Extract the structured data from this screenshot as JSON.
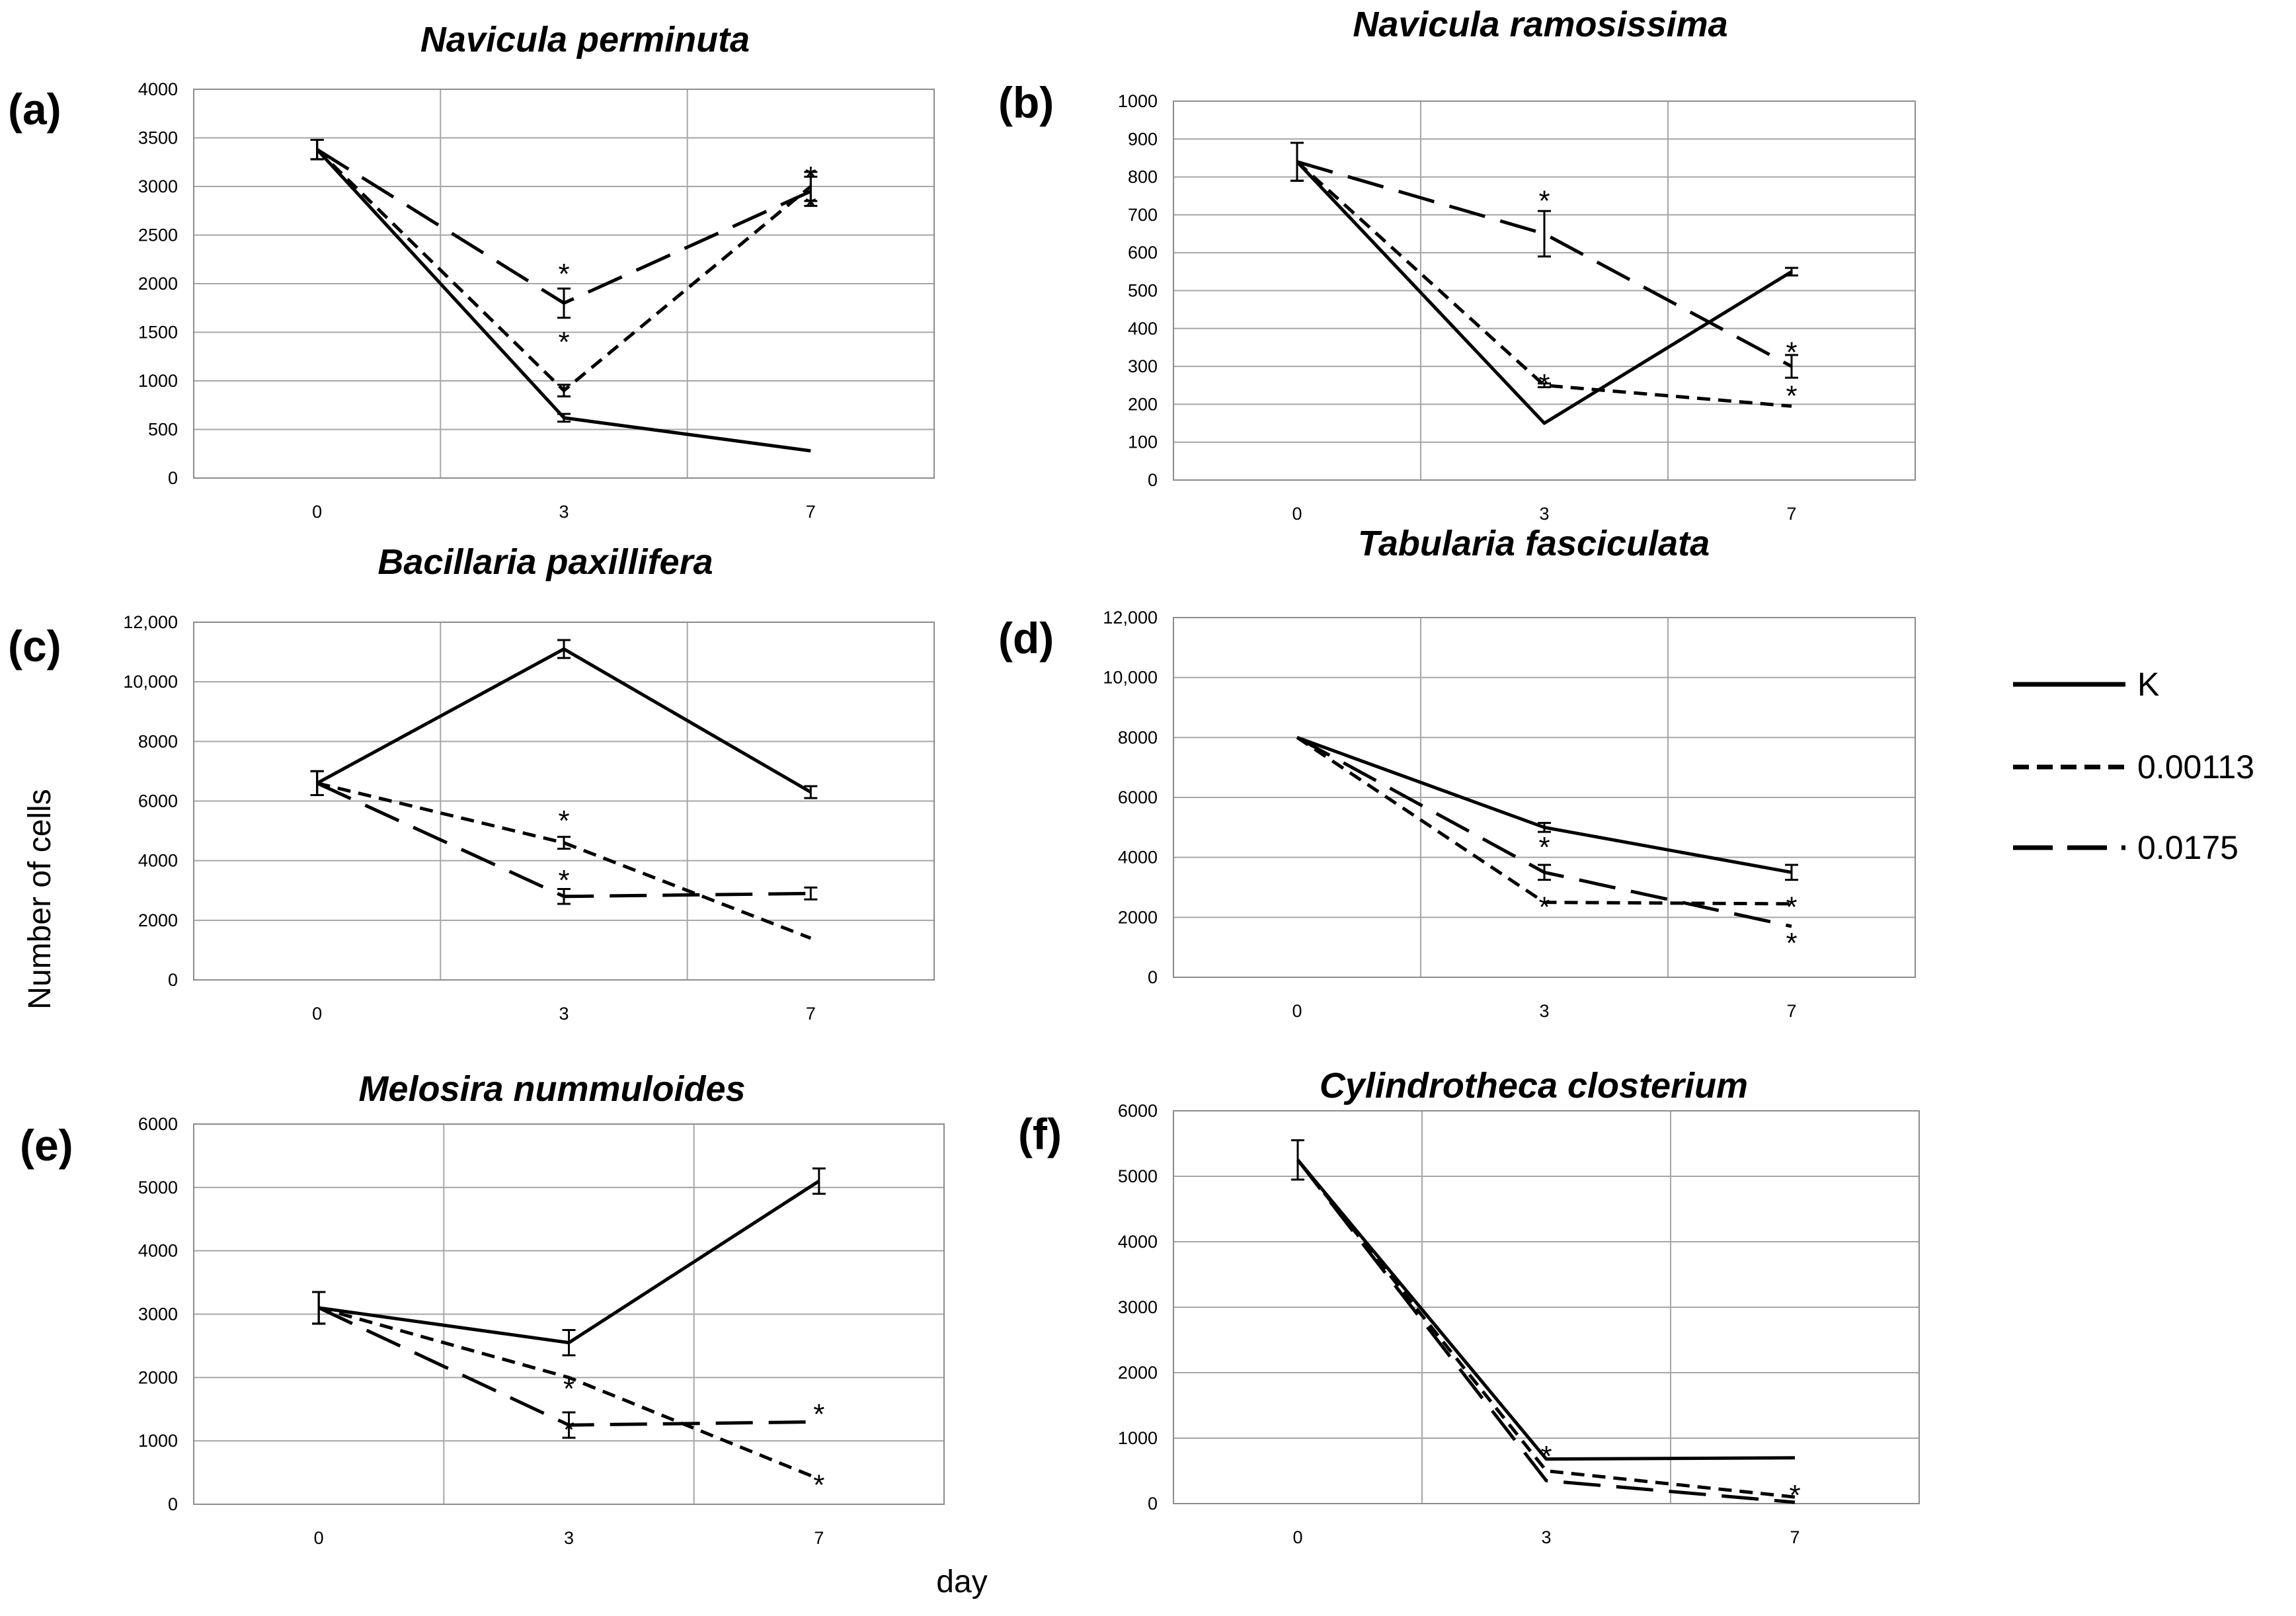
{
  "x_label": "day",
  "y_label": "Number of cells",
  "legend": {
    "entries": [
      {
        "name": "K",
        "dash": "solid"
      },
      {
        "name": "0.00113",
        "dash": "short"
      },
      {
        "name": "0.0175",
        "dash": "long"
      }
    ]
  },
  "chart_data": [
    {
      "type": "line",
      "panel": "(a)",
      "title": "Navicula perminuta",
      "categories": [
        "0",
        "3",
        "7"
      ],
      "y_ticks": [
        "0",
        "500",
        "1000",
        "1500",
        "2000",
        "2500",
        "3000",
        "3500",
        "4000"
      ],
      "ylim": [
        0,
        4000
      ],
      "grid": true,
      "series": [
        {
          "name": "K",
          "values": [
            3380,
            620,
            280
          ],
          "errors": [
            100,
            40,
            0
          ]
        },
        {
          "name": "0.00113",
          "values": [
            3380,
            900,
            3000
          ],
          "errors": [
            100,
            60,
            150
          ]
        },
        {
          "name": "0.0175",
          "values": [
            3380,
            1800,
            2950
          ],
          "errors": [
            100,
            150,
            150
          ]
        }
      ],
      "annotations": [
        {
          "text": "*",
          "x": "3",
          "y": 2150
        },
        {
          "text": "*",
          "x": "3",
          "y": 1450
        },
        {
          "text": "*",
          "x": "7",
          "y": 3150
        },
        {
          "text": "*",
          "x": "7",
          "y": 2850
        }
      ]
    },
    {
      "type": "line",
      "panel": "(b)",
      "title": "Navicula ramosissima",
      "categories": [
        "0",
        "3",
        "7"
      ],
      "y_ticks": [
        "0",
        "100",
        "200",
        "300",
        "400",
        "500",
        "600",
        "700",
        "800",
        "900",
        "1000"
      ],
      "ylim": [
        0,
        1000
      ],
      "grid": true,
      "series": [
        {
          "name": "K",
          "values": [
            840,
            150,
            550
          ],
          "errors": [
            50,
            0,
            10
          ]
        },
        {
          "name": "0.00113",
          "values": [
            840,
            250,
            195
          ],
          "errors": [
            50,
            5,
            0
          ]
        },
        {
          "name": "0.0175",
          "values": [
            840,
            650,
            300
          ],
          "errors": [
            50,
            60,
            30
          ]
        }
      ],
      "annotations": [
        {
          "text": "*",
          "x": "3",
          "y": 750
        },
        {
          "text": "*",
          "x": "3",
          "y": 265
        },
        {
          "text": "*",
          "x": "7",
          "y": 350
        },
        {
          "text": "*",
          "x": "7",
          "y": 235
        }
      ]
    },
    {
      "type": "line",
      "panel": "(c)",
      "title": "Bacillaria paxillifera",
      "categories": [
        "0",
        "3",
        "7"
      ],
      "y_ticks": [
        "0",
        "2000",
        "4000",
        "6000",
        "8000",
        "10,000",
        "12,000"
      ],
      "ylim": [
        0,
        12000
      ],
      "grid": true,
      "series": [
        {
          "name": "K",
          "values": [
            6600,
            11100,
            6300
          ],
          "errors": [
            400,
            300,
            200
          ]
        },
        {
          "name": "0.00113",
          "values": [
            6600,
            4600,
            1400
          ],
          "errors": [
            400,
            200,
            0
          ]
        },
        {
          "name": "0.0175",
          "values": [
            6600,
            2800,
            2900
          ],
          "errors": [
            400,
            250,
            200
          ]
        }
      ],
      "annotations": [
        {
          "text": "*",
          "x": "3",
          "y": 5500
        },
        {
          "text": "*",
          "x": "3",
          "y": 3500
        }
      ]
    },
    {
      "type": "line",
      "panel": "(d)",
      "title": "Tabularia fasciculata",
      "categories": [
        "0",
        "3",
        "7"
      ],
      "y_ticks": [
        "0",
        "2000",
        "4000",
        "6000",
        "8000",
        "10,000",
        "12,000"
      ],
      "ylim": [
        0,
        12000
      ],
      "grid": true,
      "series": [
        {
          "name": "K",
          "values": [
            8000,
            5000,
            3500
          ],
          "errors": [
            0,
            150,
            250
          ]
        },
        {
          "name": "0.00113",
          "values": [
            8000,
            2500,
            2450
          ],
          "errors": [
            0,
            0,
            0
          ]
        },
        {
          "name": "0.0175",
          "values": [
            8000,
            3500,
            1700
          ],
          "errors": [
            0,
            250,
            0
          ]
        }
      ],
      "annotations": [
        {
          "text": "*",
          "x": "3",
          "y": 4500
        },
        {
          "text": "*",
          "x": "3",
          "y": 2500
        },
        {
          "text": "*",
          "x": "7",
          "y": 2500
        },
        {
          "text": "*",
          "x": "7",
          "y": 1300
        }
      ]
    },
    {
      "type": "line",
      "panel": "(e)",
      "title": "Melosira nummuloides",
      "categories": [
        "0",
        "3",
        "7"
      ],
      "y_ticks": [
        "0",
        "1000",
        "2000",
        "3000",
        "4000",
        "5000",
        "6000"
      ],
      "ylim": [
        0,
        6000
      ],
      "grid": true,
      "series": [
        {
          "name": "K",
          "values": [
            3100,
            2550,
            5100
          ],
          "errors": [
            250,
            200,
            200
          ]
        },
        {
          "name": "0.00113",
          "values": [
            3100,
            2000,
            400
          ],
          "errors": [
            250,
            0,
            0
          ]
        },
        {
          "name": "0.0175",
          "values": [
            3100,
            1250,
            1300
          ],
          "errors": [
            250,
            200,
            0
          ]
        }
      ],
      "annotations": [
        {
          "text": "*",
          "x": "3",
          "y": 1900
        },
        {
          "text": "*",
          "x": "3",
          "y": 1250
        },
        {
          "text": "*",
          "x": "7",
          "y": 1500
        },
        {
          "text": "*",
          "x": "7",
          "y": 380
        }
      ]
    },
    {
      "type": "line",
      "panel": "(f)",
      "title": "Cylindrotheca closterium",
      "categories": [
        "0",
        "3",
        "7"
      ],
      "y_ticks": [
        "0",
        "1000",
        "2000",
        "3000",
        "4000",
        "5000",
        "6000"
      ],
      "ylim": [
        0,
        6000
      ],
      "grid": true,
      "series": [
        {
          "name": "K",
          "values": [
            5250,
            680,
            700
          ],
          "errors": [
            300,
            0,
            0
          ]
        },
        {
          "name": "0.00113",
          "values": [
            5250,
            500,
            100
          ],
          "errors": [
            300,
            0,
            0
          ]
        },
        {
          "name": "0.0175",
          "values": [
            5250,
            350,
            20
          ],
          "errors": [
            300,
            0,
            0
          ]
        }
      ],
      "annotations": [
        {
          "text": "*",
          "x": "3",
          "y": 800
        },
        {
          "text": "*",
          "x": "7",
          "y": 200
        }
      ]
    }
  ]
}
